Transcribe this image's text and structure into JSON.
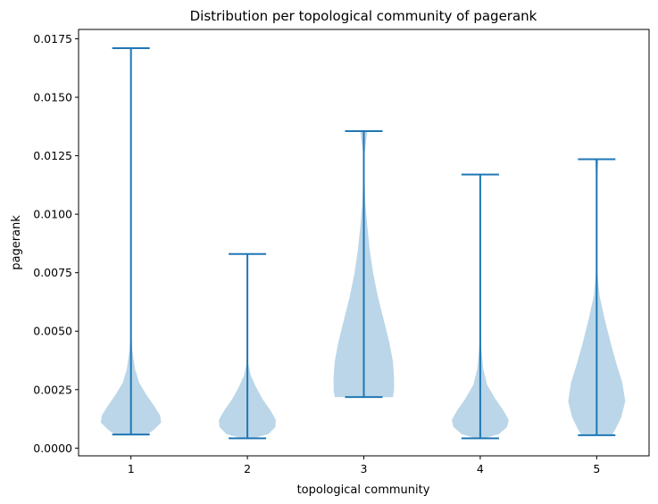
{
  "chart_data": {
    "type": "violin",
    "title": "Distribution per topological community of pagerank",
    "xlabel": "topological community",
    "ylabel": "pagerank",
    "ylim": [
      -0.00033,
      0.0179
    ],
    "xlim": [
      0.55,
      5.45
    ],
    "y_ticks": [
      0.0,
      0.0025,
      0.005,
      0.0075,
      0.01,
      0.0125,
      0.015,
      0.0175
    ],
    "y_tick_labels": [
      "0.0000",
      "0.0025",
      "0.0050",
      "0.0075",
      "0.0100",
      "0.0125",
      "0.0150",
      "0.0175"
    ],
    "categories": [
      "1",
      "2",
      "3",
      "4",
      "5"
    ],
    "grid": false,
    "colors": {
      "body": "#1f77b4",
      "body_opacity": 0.3,
      "lines": "#1f77b4"
    },
    "violins": [
      {
        "category": "1",
        "min": 0.00058,
        "max": 0.0171,
        "profile": [
          [
            0.00058,
            0.14
          ],
          [
            0.0008,
            0.2
          ],
          [
            0.0011,
            0.26
          ],
          [
            0.0014,
            0.25
          ],
          [
            0.0018,
            0.2
          ],
          [
            0.0023,
            0.13
          ],
          [
            0.0028,
            0.07
          ],
          [
            0.0034,
            0.035
          ],
          [
            0.0042,
            0.012
          ],
          [
            0.005,
            0.003
          ]
        ]
      },
      {
        "category": "2",
        "min": 0.00042,
        "max": 0.0083,
        "profile": [
          [
            0.00042,
            0.05
          ],
          [
            0.0006,
            0.18
          ],
          [
            0.0009,
            0.24
          ],
          [
            0.0012,
            0.245
          ],
          [
            0.0016,
            0.2
          ],
          [
            0.0021,
            0.13
          ],
          [
            0.0026,
            0.075
          ],
          [
            0.0031,
            0.03
          ],
          [
            0.0036,
            0.008
          ],
          [
            0.0042,
            0.002
          ]
        ]
      },
      {
        "category": "3",
        "min": 0.00218,
        "max": 0.01355,
        "profile": [
          [
            0.00218,
            0.25
          ],
          [
            0.0025,
            0.26
          ],
          [
            0.003,
            0.26
          ],
          [
            0.0037,
            0.25
          ],
          [
            0.0045,
            0.22
          ],
          [
            0.0055,
            0.17
          ],
          [
            0.0065,
            0.12
          ],
          [
            0.0075,
            0.08
          ],
          [
            0.0085,
            0.05
          ],
          [
            0.0095,
            0.03
          ],
          [
            0.0105,
            0.012
          ],
          [
            0.0115,
            0.006
          ],
          [
            0.0125,
            0.004
          ],
          [
            0.01355,
            0.03
          ]
        ]
      },
      {
        "category": "4",
        "min": 0.00042,
        "max": 0.0117,
        "profile": [
          [
            0.00042,
            0.04
          ],
          [
            0.0006,
            0.16
          ],
          [
            0.0009,
            0.23
          ],
          [
            0.0012,
            0.245
          ],
          [
            0.0016,
            0.2
          ],
          [
            0.0021,
            0.13
          ],
          [
            0.0027,
            0.06
          ],
          [
            0.0034,
            0.025
          ],
          [
            0.0042,
            0.01
          ],
          [
            0.005,
            0.003
          ]
        ]
      },
      {
        "category": "5",
        "min": 0.00055,
        "max": 0.01235,
        "profile": [
          [
            0.00055,
            0.13
          ],
          [
            0.0008,
            0.16
          ],
          [
            0.0013,
            0.21
          ],
          [
            0.002,
            0.245
          ],
          [
            0.0028,
            0.22
          ],
          [
            0.0036,
            0.17
          ],
          [
            0.0045,
            0.12
          ],
          [
            0.0055,
            0.07
          ],
          [
            0.0065,
            0.025
          ],
          [
            0.0075,
            0.006
          ],
          [
            0.009,
            0.003
          ],
          [
            0.0115,
            0.003
          ],
          [
            0.01235,
            0.015
          ]
        ]
      }
    ]
  }
}
